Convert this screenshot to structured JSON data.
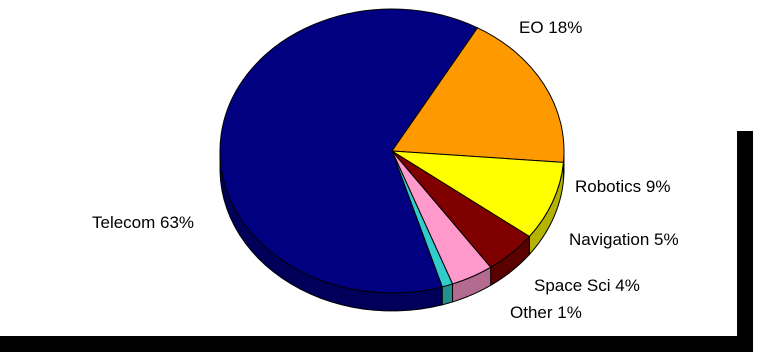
{
  "chart_data": {
    "type": "pie",
    "title": "",
    "slices": [
      {
        "label": "Telecom 63%",
        "value": 63,
        "color": "#000080",
        "side": "#00005a"
      },
      {
        "label": "EO 18%",
        "value": 18,
        "color": "#ff9900",
        "side": "#b36b00"
      },
      {
        "label": "Robotics 9%",
        "value": 9,
        "color": "#ffff00",
        "side": "#b3b300"
      },
      {
        "label": "Navigation 5%",
        "value": 5,
        "color": "#800000",
        "side": "#5a0000"
      },
      {
        "label": "Space Sci 4%",
        "value": 4,
        "color": "#ff99cc",
        "side": "#b36b8f"
      },
      {
        "label": "Other 1%",
        "value": 1,
        "color": "#33cccc",
        "side": "#248f8f"
      }
    ]
  }
}
